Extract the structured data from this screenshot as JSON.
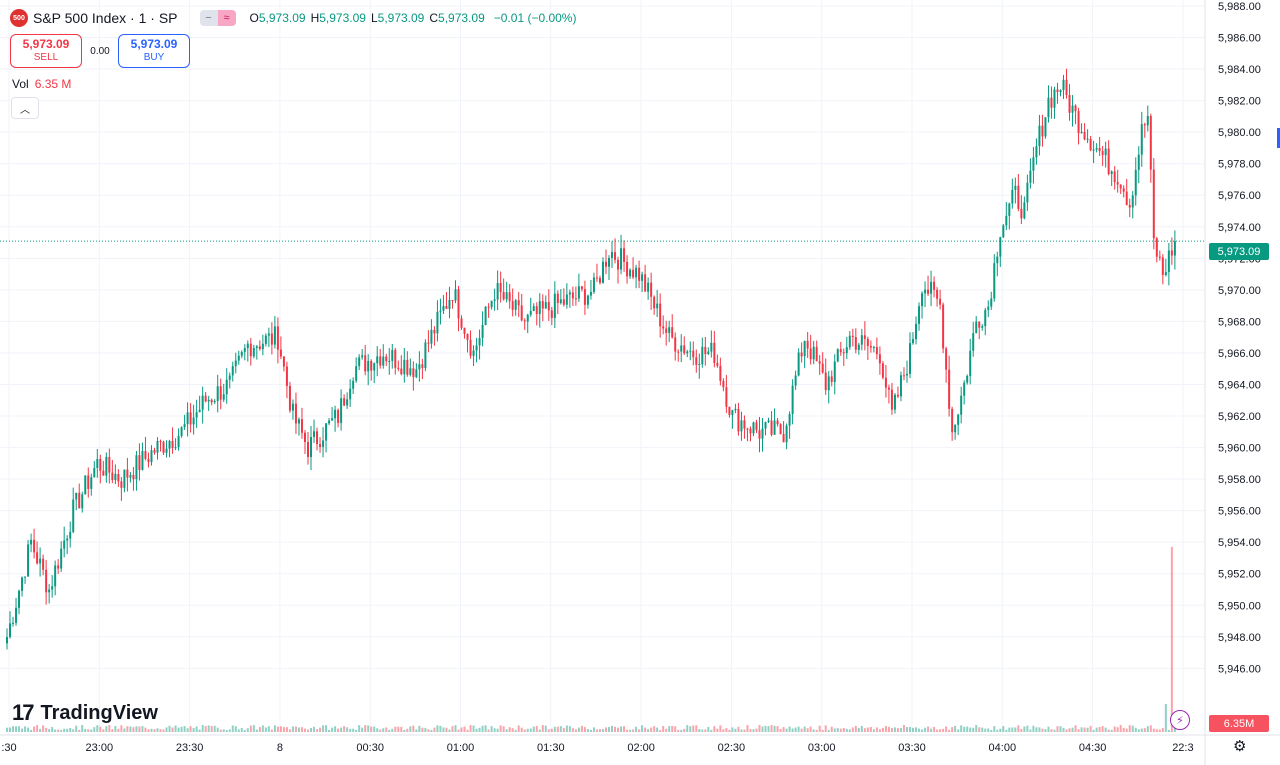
{
  "header": {
    "symbol_badge": "500",
    "title": "S&P 500 Index · 1 · SP",
    "ohlc": {
      "o_label": "O",
      "o": "5,973.09",
      "h_label": "H",
      "h": "5,973.09",
      "l_label": "L",
      "l": "5,973.09",
      "c_label": "C",
      "c": "5,973.09",
      "change": "−0.01 (−0.00%)"
    },
    "pill_icons": [
      "minus-icon",
      "wave-icon"
    ]
  },
  "trade": {
    "sell_price": "5,973.09",
    "sell_label": "SELL",
    "spread": "0.00",
    "buy_price": "5,973.09",
    "buy_label": "BUY"
  },
  "volume": {
    "label": "Vol",
    "value": "6.35 M"
  },
  "branding": {
    "logo_mark": "17",
    "name": "TradingView"
  },
  "price_axis": {
    "labels": [
      "5,988.00",
      "5,986.00",
      "5,984.00",
      "5,982.00",
      "5,980.00",
      "5,978.00",
      "5,976.00",
      "5,974.00",
      "5,972.00",
      "5,970.00",
      "5,968.00",
      "5,966.00",
      "5,964.00",
      "5,962.00",
      "5,960.00",
      "5,958.00",
      "5,956.00",
      "5,954.00",
      "5,952.00",
      "5,950.00",
      "5,948.00",
      "5,946.00"
    ],
    "last_price_label": "5,973.09",
    "volume_label": "6.35M"
  },
  "time_axis": {
    "labels": [
      ":30",
      "23:00",
      "23:30",
      "8",
      "00:30",
      "01:00",
      "01:30",
      "02:00",
      "02:30",
      "03:00",
      "03:30",
      "04:00",
      "04:30",
      "22:3"
    ]
  },
  "colors": {
    "up": "#089981",
    "down": "#f23645",
    "grid": "#f0f3fa",
    "badge": "#e03131",
    "last_price_line": "#089981"
  },
  "chart_data": {
    "type": "candlestick",
    "interval": "1",
    "ylim": [
      5944.5,
      5988
    ],
    "x_ticks": [
      ":30",
      "23:00",
      "23:30",
      "8",
      "00:30",
      "01:00",
      "01:30",
      "02:00",
      "02:30",
      "03:00",
      "03:30",
      "04:00",
      "04:30",
      "22:3"
    ],
    "last_price": 5973.09,
    "volume_last": "6.35M",
    "anchors_time_index": [
      0,
      30,
      60,
      90,
      120,
      150,
      180,
      210,
      240,
      270,
      300,
      330,
      360,
      390
    ],
    "price_path": [
      {
        "i": 0,
        "p": 5948
      },
      {
        "i": 8,
        "p": 5954
      },
      {
        "i": 14,
        "p": 5951
      },
      {
        "i": 22,
        "p": 5956
      },
      {
        "i": 30,
        "p": 5959
      },
      {
        "i": 38,
        "p": 5958
      },
      {
        "i": 50,
        "p": 5960
      },
      {
        "i": 58,
        "p": 5961
      },
      {
        "i": 66,
        "p": 5963
      },
      {
        "i": 74,
        "p": 5964
      },
      {
        "i": 80,
        "p": 5966.5
      },
      {
        "i": 90,
        "p": 5967
      },
      {
        "i": 95,
        "p": 5962
      },
      {
        "i": 100,
        "p": 5960
      },
      {
        "i": 110,
        "p": 5962
      },
      {
        "i": 115,
        "p": 5965
      },
      {
        "i": 125,
        "p": 5966
      },
      {
        "i": 136,
        "p": 5965
      },
      {
        "i": 148,
        "p": 5970
      },
      {
        "i": 155,
        "p": 5966
      },
      {
        "i": 162,
        "p": 5970
      },
      {
        "i": 172,
        "p": 5968
      },
      {
        "i": 182,
        "p": 5969
      },
      {
        "i": 195,
        "p": 5970
      },
      {
        "i": 200,
        "p": 5972.5
      },
      {
        "i": 210,
        "p": 5971
      },
      {
        "i": 220,
        "p": 5967
      },
      {
        "i": 228,
        "p": 5966
      },
      {
        "i": 235,
        "p": 5966
      },
      {
        "i": 241,
        "p": 5962
      },
      {
        "i": 250,
        "p": 5961
      },
      {
        "i": 258,
        "p": 5961
      },
      {
        "i": 265,
        "p": 5967
      },
      {
        "i": 272,
        "p": 5964
      },
      {
        "i": 280,
        "p": 5967
      },
      {
        "i": 290,
        "p": 5966
      },
      {
        "i": 294,
        "p": 5962
      },
      {
        "i": 300,
        "p": 5966
      },
      {
        "i": 304,
        "p": 5970.5
      },
      {
        "i": 310,
        "p": 5969
      },
      {
        "i": 314,
        "p": 5961
      },
      {
        "i": 318,
        "p": 5964
      },
      {
        "i": 322,
        "p": 5968
      },
      {
        "i": 326,
        "p": 5969
      },
      {
        "i": 330,
        "p": 5974
      },
      {
        "i": 335,
        "p": 5976
      },
      {
        "i": 338,
        "p": 5975
      },
      {
        "i": 342,
        "p": 5979
      },
      {
        "i": 346,
        "p": 5982
      },
      {
        "i": 350,
        "p": 5983
      },
      {
        "i": 355,
        "p": 5981
      },
      {
        "i": 362,
        "p": 5979
      },
      {
        "i": 370,
        "p": 5977
      },
      {
        "i": 373,
        "p": 5975.5
      },
      {
        "i": 377,
        "p": 5980
      },
      {
        "i": 379,
        "p": 5981
      },
      {
        "i": 381,
        "p": 5973
      },
      {
        "i": 384,
        "p": 5971
      },
      {
        "i": 388,
        "p": 5973.09
      }
    ]
  }
}
